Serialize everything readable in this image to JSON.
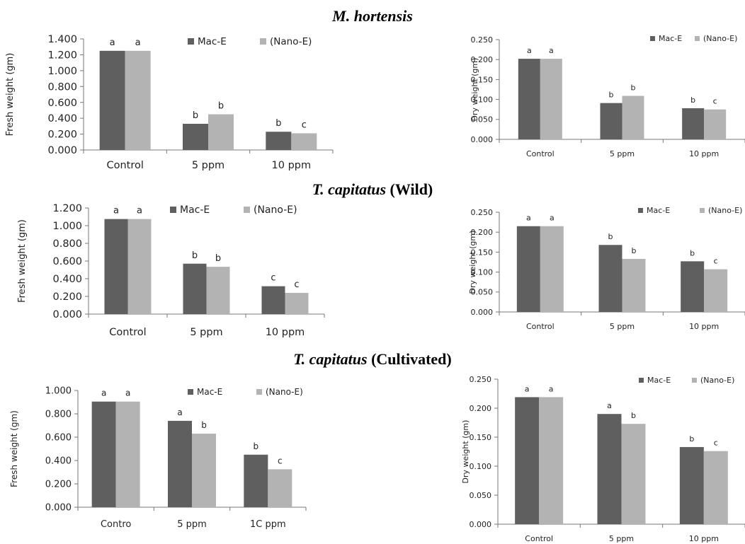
{
  "colors": {
    "mac": "#5f5f5f",
    "nano": "#b3b3b3"
  },
  "sections": [
    {
      "species": "M. hortensis",
      "suffix": ""
    },
    {
      "species": "T. capitatus",
      "suffix": " (Wild)"
    },
    {
      "species": "T. capitatus",
      "suffix": " (Cultivated)"
    }
  ],
  "chart_data": [
    {
      "type": "bar",
      "categories": [
        "Control",
        "5 ppm",
        "10 ppm"
      ],
      "ylabel": "Fresh weight (gm)",
      "ylim": [
        0,
        1.4
      ],
      "yticks": [
        "0.000",
        "0.200",
        "0.400",
        "0.600",
        "0.800",
        "1.000",
        "1.200",
        "1.400"
      ],
      "series": [
        {
          "name": "Mac-E",
          "values": [
            1.25,
            0.33,
            0.23
          ],
          "letters": [
            "a",
            "b",
            "b"
          ]
        },
        {
          "name": "(Nano-E)",
          "values": [
            1.25,
            0.45,
            0.21
          ],
          "letters": [
            "a",
            "b",
            "c"
          ]
        }
      ],
      "legend": "top-center"
    },
    {
      "type": "bar",
      "categories": [
        "Control",
        "5 ppm",
        "10 ppm"
      ],
      "ylabel": "Dry weight (gm)",
      "ylim": [
        0,
        0.25
      ],
      "yticks": [
        "0.000",
        "0.050",
        "0.100",
        "0.150",
        "0.200",
        "0.250"
      ],
      "series": [
        {
          "name": "Mac-E",
          "values": [
            0.202,
            0.091,
            0.078
          ],
          "letters": [
            "a",
            "b",
            "b"
          ]
        },
        {
          "name": "(Nano-E)",
          "values": [
            0.202,
            0.109,
            0.075
          ],
          "letters": [
            "a",
            "b",
            "c"
          ]
        }
      ],
      "legend": "top-right"
    },
    {
      "type": "bar",
      "categories": [
        "Control",
        "5 ppm",
        "10 ppm"
      ],
      "ylabel": "Fresh weight (gm)",
      "ylim": [
        0,
        1.2
      ],
      "yticks": [
        "0.000",
        "0.200",
        "0.400",
        "0.600",
        "0.800",
        "1.000",
        "1.200"
      ],
      "series": [
        {
          "name": "Mac-E",
          "values": [
            1.075,
            0.57,
            0.315
          ],
          "letters": [
            "a",
            "b",
            "c"
          ]
        },
        {
          "name": "(Nano-E)",
          "values": [
            1.075,
            0.535,
            0.24
          ],
          "letters": [
            "a",
            "b",
            "c"
          ]
        }
      ],
      "legend": "top-center"
    },
    {
      "type": "bar",
      "categories": [
        "Control",
        "5 ppm",
        "10 ppm"
      ],
      "ylabel": "Dry weight (gm)",
      "ylim": [
        0,
        0.25
      ],
      "yticks": [
        "0.000",
        "0.050",
        "0.100",
        "0.150",
        "0.200",
        "0.250"
      ],
      "series": [
        {
          "name": "Mac-E",
          "values": [
            0.215,
            0.168,
            0.127
          ],
          "letters": [
            "a",
            "b",
            "b"
          ]
        },
        {
          "name": "(Nano-E)",
          "values": [
            0.215,
            0.133,
            0.107
          ],
          "letters": [
            "a",
            "b",
            "c"
          ]
        }
      ],
      "legend": "top-right"
    },
    {
      "type": "bar",
      "categories": [
        "Contro",
        "5 ppm",
        "1C ppm"
      ],
      "ylabel": "Fresh weight (gm)",
      "ylim": [
        0,
        1.0
      ],
      "yticks": [
        "0.000",
        "0.200",
        "0.400",
        "0.600",
        "0.800",
        "1.000"
      ],
      "series": [
        {
          "name": "Mac-E",
          "values": [
            0.905,
            0.74,
            0.45
          ],
          "letters": [
            "a",
            "a",
            "b"
          ]
        },
        {
          "name": "(Nano-E)",
          "values": [
            0.905,
            0.63,
            0.325
          ],
          "letters": [
            "a",
            "b",
            "c"
          ]
        }
      ],
      "legend": "top-center"
    },
    {
      "type": "bar",
      "categories": [
        "Control",
        "5 ppm",
        "10 ppm"
      ],
      "ylabel": "Dry weight (gm)",
      "ylim": [
        0,
        0.25
      ],
      "yticks": [
        "0.000",
        "0.050",
        "0.100",
        "0.150",
        "0.200",
        "0.250"
      ],
      "series": [
        {
          "name": "Mac-E",
          "values": [
            0.219,
            0.19,
            0.133
          ],
          "letters": [
            "a",
            "a",
            "b"
          ]
        },
        {
          "name": "(Nano-E)",
          "values": [
            0.219,
            0.173,
            0.126
          ],
          "letters": [
            "a",
            "b",
            "c"
          ]
        }
      ],
      "legend": "top-right"
    }
  ]
}
